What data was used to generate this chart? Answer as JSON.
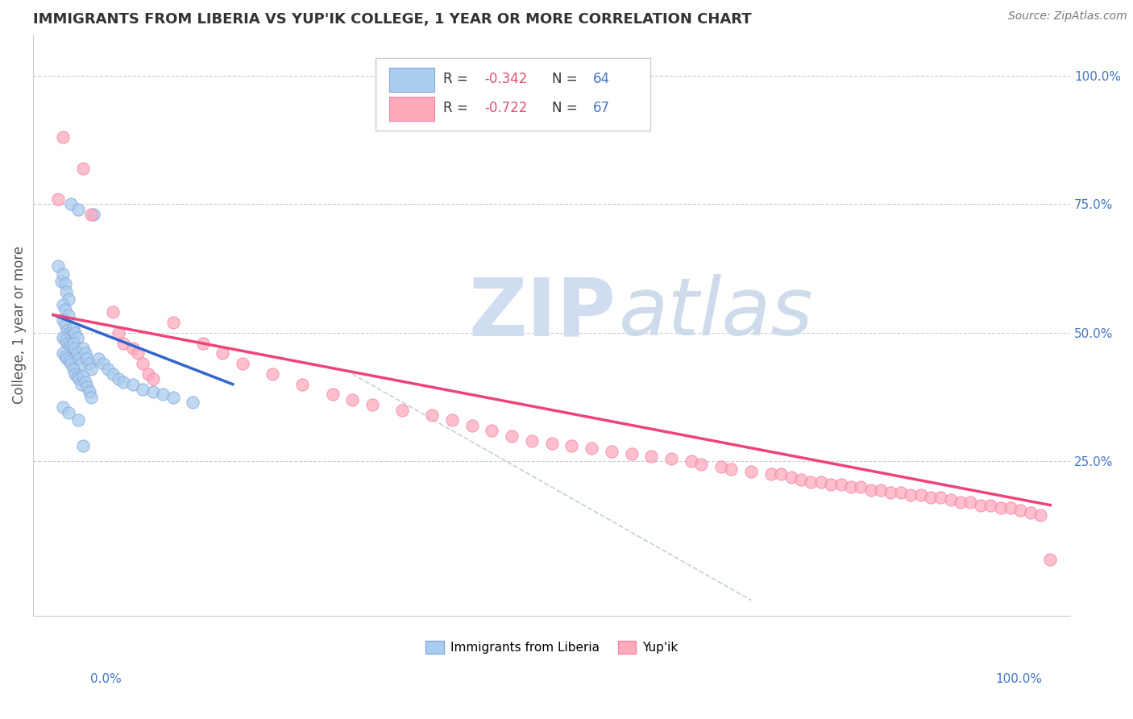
{
  "title": "IMMIGRANTS FROM LIBERIA VS YUP'IK COLLEGE, 1 YEAR OR MORE CORRELATION CHART",
  "source_text": "Source: ZipAtlas.com",
  "ylabel": "College, 1 year or more",
  "xlim": [
    -0.02,
    1.02
  ],
  "ylim": [
    -0.05,
    1.08
  ],
  "right_yticks": [
    0.25,
    0.5,
    0.75,
    1.0
  ],
  "right_ytick_labels": [
    "25.0%",
    "50.0%",
    "75.0%",
    "100.0%"
  ],
  "grid_yticks": [
    0.25,
    0.5,
    0.75,
    1.0
  ],
  "legend_r_color": "#e05070",
  "legend_n_color": "#4477cc",
  "blue_scatter": [
    [
      0.005,
      0.63
    ],
    [
      0.008,
      0.6
    ],
    [
      0.01,
      0.615
    ],
    [
      0.012,
      0.595
    ],
    [
      0.013,
      0.58
    ],
    [
      0.015,
      0.565
    ],
    [
      0.01,
      0.555
    ],
    [
      0.012,
      0.545
    ],
    [
      0.015,
      0.535
    ],
    [
      0.01,
      0.525
    ],
    [
      0.012,
      0.515
    ],
    [
      0.014,
      0.505
    ],
    [
      0.016,
      0.5
    ],
    [
      0.018,
      0.495
    ],
    [
      0.01,
      0.49
    ],
    [
      0.012,
      0.485
    ],
    [
      0.014,
      0.48
    ],
    [
      0.016,
      0.475
    ],
    [
      0.018,
      0.47
    ],
    [
      0.01,
      0.46
    ],
    [
      0.012,
      0.455
    ],
    [
      0.014,
      0.45
    ],
    [
      0.016,
      0.445
    ],
    [
      0.018,
      0.44
    ],
    [
      0.02,
      0.51
    ],
    [
      0.022,
      0.5
    ],
    [
      0.024,
      0.49
    ],
    [
      0.02,
      0.48
    ],
    [
      0.022,
      0.47
    ],
    [
      0.024,
      0.46
    ],
    [
      0.026,
      0.45
    ],
    [
      0.028,
      0.44
    ],
    [
      0.02,
      0.43
    ],
    [
      0.022,
      0.42
    ],
    [
      0.024,
      0.415
    ],
    [
      0.026,
      0.41
    ],
    [
      0.028,
      0.4
    ],
    [
      0.03,
      0.47
    ],
    [
      0.032,
      0.46
    ],
    [
      0.034,
      0.45
    ],
    [
      0.036,
      0.44
    ],
    [
      0.038,
      0.43
    ],
    [
      0.03,
      0.415
    ],
    [
      0.032,
      0.405
    ],
    [
      0.034,
      0.395
    ],
    [
      0.036,
      0.385
    ],
    [
      0.038,
      0.375
    ],
    [
      0.045,
      0.45
    ],
    [
      0.05,
      0.44
    ],
    [
      0.055,
      0.43
    ],
    [
      0.06,
      0.42
    ],
    [
      0.065,
      0.41
    ],
    [
      0.07,
      0.405
    ],
    [
      0.08,
      0.4
    ],
    [
      0.09,
      0.39
    ],
    [
      0.1,
      0.385
    ],
    [
      0.11,
      0.38
    ],
    [
      0.12,
      0.375
    ],
    [
      0.14,
      0.365
    ],
    [
      0.018,
      0.75
    ],
    [
      0.025,
      0.74
    ],
    [
      0.04,
      0.73
    ],
    [
      0.01,
      0.355
    ],
    [
      0.015,
      0.345
    ],
    [
      0.025,
      0.33
    ],
    [
      0.03,
      0.28
    ]
  ],
  "pink_scatter": [
    [
      0.01,
      0.88
    ],
    [
      0.03,
      0.82
    ],
    [
      0.005,
      0.76
    ],
    [
      0.038,
      0.73
    ],
    [
      0.06,
      0.54
    ],
    [
      0.065,
      0.5
    ],
    [
      0.07,
      0.48
    ],
    [
      0.08,
      0.47
    ],
    [
      0.085,
      0.46
    ],
    [
      0.09,
      0.44
    ],
    [
      0.095,
      0.42
    ],
    [
      0.1,
      0.41
    ],
    [
      0.12,
      0.52
    ],
    [
      0.15,
      0.48
    ],
    [
      0.17,
      0.46
    ],
    [
      0.19,
      0.44
    ],
    [
      0.22,
      0.42
    ],
    [
      0.25,
      0.4
    ],
    [
      0.28,
      0.38
    ],
    [
      0.3,
      0.37
    ],
    [
      0.32,
      0.36
    ],
    [
      0.35,
      0.35
    ],
    [
      0.38,
      0.34
    ],
    [
      0.4,
      0.33
    ],
    [
      0.42,
      0.32
    ],
    [
      0.44,
      0.31
    ],
    [
      0.46,
      0.3
    ],
    [
      0.48,
      0.29
    ],
    [
      0.5,
      0.285
    ],
    [
      0.52,
      0.28
    ],
    [
      0.54,
      0.275
    ],
    [
      0.56,
      0.27
    ],
    [
      0.58,
      0.265
    ],
    [
      0.6,
      0.26
    ],
    [
      0.62,
      0.255
    ],
    [
      0.64,
      0.25
    ],
    [
      0.65,
      0.245
    ],
    [
      0.67,
      0.24
    ],
    [
      0.68,
      0.235
    ],
    [
      0.7,
      0.23
    ],
    [
      0.72,
      0.225
    ],
    [
      0.73,
      0.225
    ],
    [
      0.74,
      0.22
    ],
    [
      0.75,
      0.215
    ],
    [
      0.76,
      0.21
    ],
    [
      0.77,
      0.21
    ],
    [
      0.78,
      0.205
    ],
    [
      0.79,
      0.205
    ],
    [
      0.8,
      0.2
    ],
    [
      0.81,
      0.2
    ],
    [
      0.82,
      0.195
    ],
    [
      0.83,
      0.195
    ],
    [
      0.84,
      0.19
    ],
    [
      0.85,
      0.19
    ],
    [
      0.86,
      0.185
    ],
    [
      0.87,
      0.185
    ],
    [
      0.88,
      0.18
    ],
    [
      0.89,
      0.18
    ],
    [
      0.9,
      0.175
    ],
    [
      0.91,
      0.17
    ],
    [
      0.92,
      0.17
    ],
    [
      0.93,
      0.165
    ],
    [
      0.94,
      0.165
    ],
    [
      0.95,
      0.16
    ],
    [
      0.96,
      0.16
    ],
    [
      0.97,
      0.155
    ],
    [
      0.98,
      0.15
    ],
    [
      0.99,
      0.145
    ],
    [
      1.0,
      0.06
    ]
  ],
  "blue_line": {
    "x": [
      0.0,
      0.18
    ],
    "y": [
      0.535,
      0.4
    ]
  },
  "pink_line": {
    "x": [
      0.0,
      1.0
    ],
    "y": [
      0.535,
      0.165
    ]
  },
  "diag_line": {
    "x": [
      0.3,
      0.7
    ],
    "y": [
      0.42,
      -0.02
    ]
  },
  "scatter_size": 120,
  "blue_color": "#aaccee",
  "blue_edge_color": "#88aadd",
  "pink_color": "#ffaabb",
  "pink_edge_color": "#ee88aa",
  "blue_line_color": "#3366cc",
  "pink_line_color": "#ee4477",
  "diag_line_color": "#aabbcc",
  "watermark_zip": "ZIP",
  "watermark_atlas": "atlas",
  "watermark_color_zip": "#d0ddf0",
  "watermark_color_atlas": "#c8d8e8",
  "background_color": "#ffffff",
  "grid_color": "#cccccc",
  "title_color": "#333333",
  "right_ytick_color": "#4477cc",
  "ylabel_color": "#555555"
}
